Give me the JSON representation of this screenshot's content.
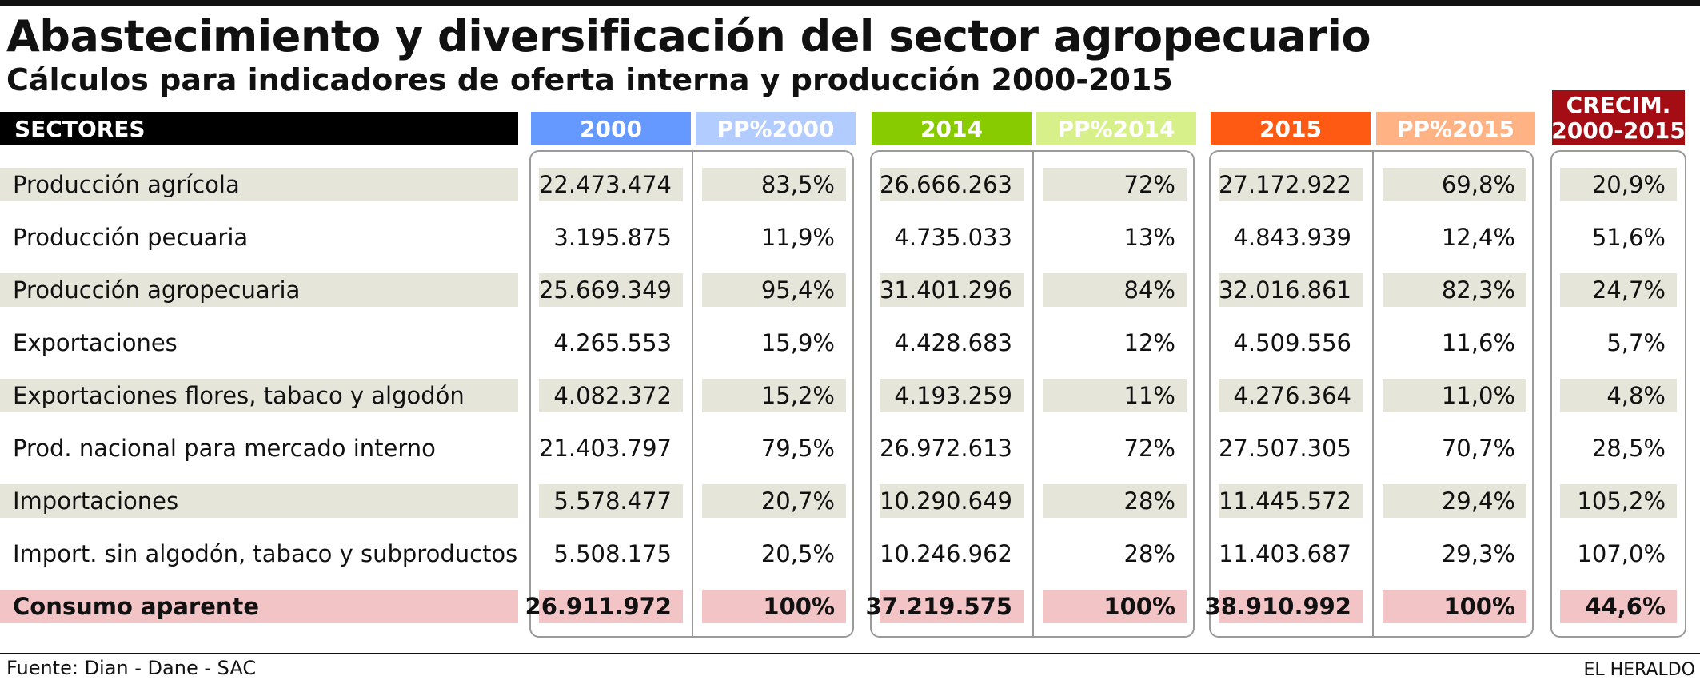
{
  "title": "Abastecimiento y diversificación del sector agropecuario",
  "subtitle": "Cálculos para indicadores de oferta interna y producción 2000-2015",
  "colors": {
    "2000": "#6699ff",
    "pp2000": "#b3ccff",
    "2014": "#88cc00",
    "pp2014": "#d8f08a",
    "2015": "#ff5a14",
    "pp2015": "#ffb385",
    "crecim": "#a50d14",
    "row_shade": "#e6e5da",
    "total_row": "#f2c4c6"
  },
  "table": {
    "headers": {
      "sectores": "SECTORES",
      "c2000": "2000",
      "pp2000": "PP%2000",
      "c2014": "2014",
      "pp2014": "PP%2014",
      "c2015": "2015",
      "pp2015": "PP%2015",
      "crecim_1": "CRECIM.",
      "crecim_2": "2000-2015"
    },
    "rows": [
      {
        "label": "Producción agrícola",
        "v2000": "22.473.474",
        "pp2000": "83,5%",
        "v2014": "26.666.263",
        "pp2014": "72%",
        "v2015": "27.172.922",
        "pp2015": "69,8%",
        "crecim": "20,9%"
      },
      {
        "label": "Producción pecuaria",
        "v2000": "3.195.875",
        "pp2000": "11,9%",
        "v2014": "4.735.033",
        "pp2014": "13%",
        "v2015": "4.843.939",
        "pp2015": "12,4%",
        "crecim": "51,6%"
      },
      {
        "label": "Producción agropecuaria",
        "v2000": "25.669.349",
        "pp2000": "95,4%",
        "v2014": "31.401.296",
        "pp2014": "84%",
        "v2015": "32.016.861",
        "pp2015": "82,3%",
        "crecim": "24,7%"
      },
      {
        "label": "Exportaciones",
        "v2000": "4.265.553",
        "pp2000": "15,9%",
        "v2014": "4.428.683",
        "pp2014": "12%",
        "v2015": "4.509.556",
        "pp2015": "11,6%",
        "crecim": "5,7%"
      },
      {
        "label": "Exportaciones flores, tabaco y algodón",
        "v2000": "4.082.372",
        "pp2000": "15,2%",
        "v2014": "4.193.259",
        "pp2014": "11%",
        "v2015": "4.276.364",
        "pp2015": "11,0%",
        "crecim": "4,8%"
      },
      {
        "label": "Prod. nacional para mercado interno",
        "v2000": "21.403.797",
        "pp2000": "79,5%",
        "v2014": "26.972.613",
        "pp2014": "72%",
        "v2015": "27.507.305",
        "pp2015": "70,7%",
        "crecim": "28,5%"
      },
      {
        "label": "Importaciones",
        "v2000": "5.578.477",
        "pp2000": "20,7%",
        "v2014": "10.290.649",
        "pp2014": "28%",
        "v2015": "11.445.572",
        "pp2015": "29,4%",
        "crecim": "105,2%"
      },
      {
        "label": "Import. sin algodón, tabaco y subproductos",
        "v2000": "5.508.175",
        "pp2000": "20,5%",
        "v2014": "10.246.962",
        "pp2014": "28%",
        "v2015": "11.403.687",
        "pp2015": "29,3%",
        "crecim": "107,0%"
      },
      {
        "label": "Consumo aparente",
        "v2000": "26.911.972",
        "pp2000": "100%",
        "v2014": "37.219.575",
        "pp2014": "100%",
        "v2015": "38.910.992",
        "pp2015": "100%",
        "crecim": "44,6%"
      }
    ]
  },
  "footer": {
    "source": "Fuente: Dian - Dane - SAC",
    "brand": "EL HERALDO"
  }
}
